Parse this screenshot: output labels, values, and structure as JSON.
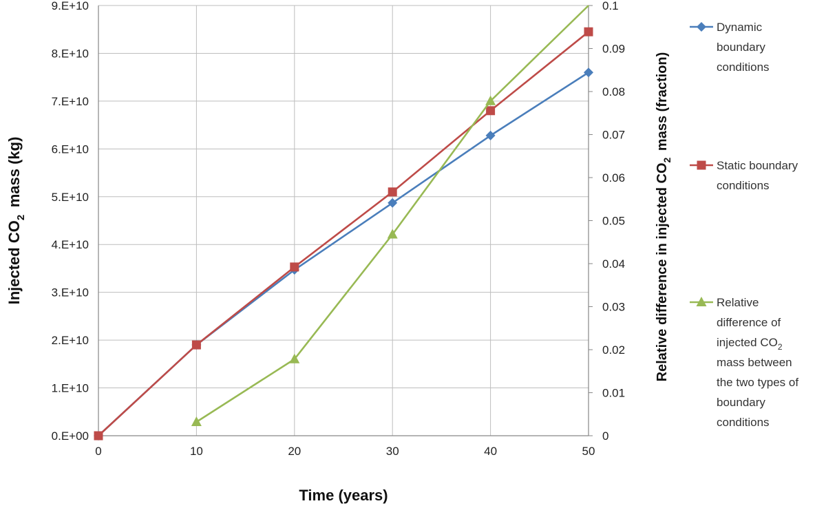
{
  "chart_data": {
    "type": "line",
    "xlabel": "Time (years)",
    "ylabel_left": "Injected CO2 mass (kg)",
    "ylabel_right": "Relative difference in injected CO2 mass (fraction)",
    "xlim": [
      0,
      50
    ],
    "xticks": [
      "0",
      "10",
      "20",
      "30",
      "40",
      "50"
    ],
    "ylim_left": [
      0,
      90000000000
    ],
    "yticks_left": [
      "0.E+00",
      "1.E+10",
      "2.E+10",
      "3.E+10",
      "4.E+10",
      "5.E+10",
      "6.E+10",
      "7.E+10",
      "8.E+10",
      "9.E+10"
    ],
    "ylim_right": [
      0,
      0.1
    ],
    "yticks_right": [
      "0",
      "0.01",
      "0.02",
      "0.03",
      "0.04",
      "0.05",
      "0.06",
      "0.07",
      "0.08",
      "0.09",
      "0.1"
    ],
    "grid": true,
    "legend_position": "right",
    "series": [
      {
        "name": "Dynamic boundary conditions",
        "axis": "left",
        "color": "#4a7ebb",
        "marker": "diamond",
        "x": [
          0,
          10,
          20,
          30,
          40,
          50
        ],
        "y": [
          0,
          19000000000,
          34700000000,
          48700000000,
          62800000000,
          76000000000
        ]
      },
      {
        "name": "Static boundary conditions",
        "axis": "left",
        "color": "#be4b48",
        "marker": "square",
        "x": [
          0,
          10,
          20,
          30,
          40,
          50
        ],
        "y": [
          0,
          19000000000,
          35300000000,
          51000000000,
          68000000000,
          84500000000
        ]
      },
      {
        "name": "Relative difference of injected CO2 mass between the two types of boundary conditions",
        "axis": "right",
        "color": "#98b954",
        "marker": "triangle",
        "x": [
          10,
          20,
          30,
          40,
          50
        ],
        "y": [
          0.0032,
          0.0178,
          0.0468,
          0.0778,
          0.1
        ]
      }
    ],
    "legend": [
      {
        "lines": [
          "Dynamic",
          "boundary",
          "conditions"
        ]
      },
      {
        "lines": [
          "Static boundary",
          "conditions"
        ]
      },
      {
        "lines": [
          "Relative",
          "difference of",
          "injected CO2",
          "mass  between",
          "the two types of",
          "boundary",
          "conditions"
        ]
      }
    ]
  }
}
